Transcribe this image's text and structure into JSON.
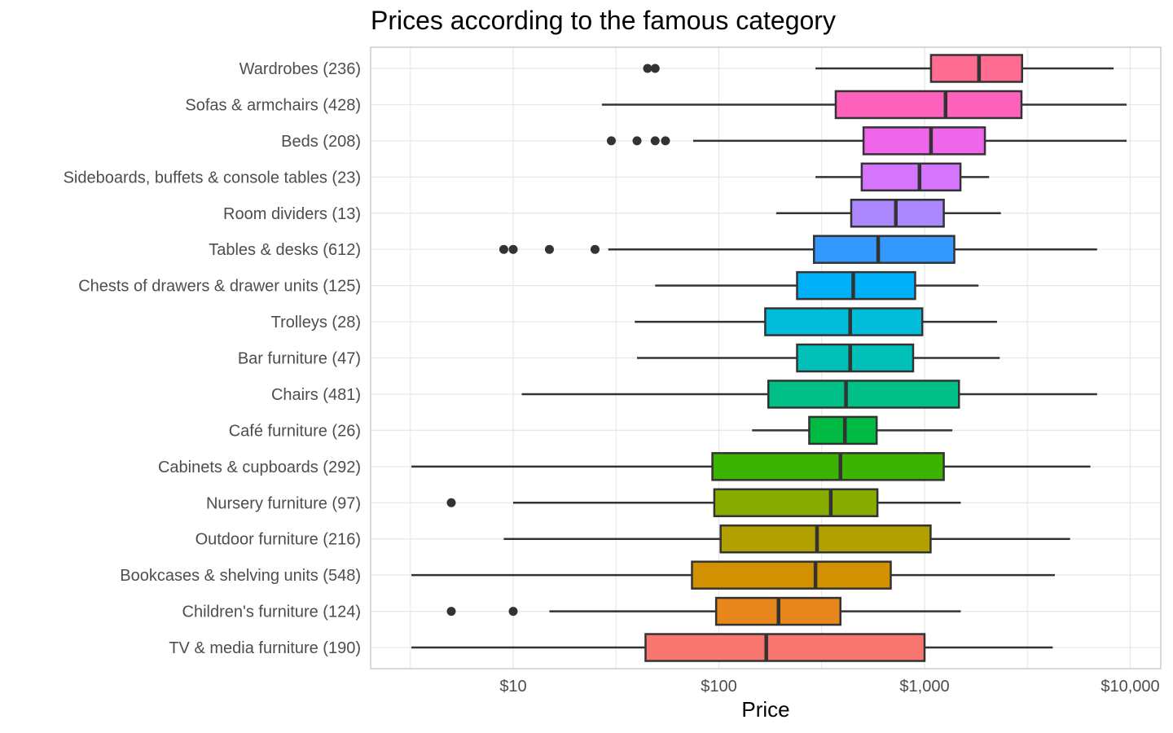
{
  "chart_data": {
    "type": "boxplot",
    "title": "Prices according to the famous category",
    "xlabel": "Price",
    "ylabel": "",
    "x_scale": "log10",
    "xlim": [
      3,
      11000
    ],
    "x_ticks": [
      10,
      100,
      1000,
      10000
    ],
    "x_tick_labels": [
      "$10",
      "$100",
      "$1,000",
      "$10,000"
    ],
    "grid": true,
    "legend": "none",
    "panel_border_color": "#b3b3b3",
    "gridline_color": "#e6e6e6",
    "box_outline_color": "#333333",
    "outlier_color": "#333333",
    "categories": [
      {
        "label": "Wardrobes (236)",
        "color": "#FF6C91",
        "whisker_low": 295,
        "q1": 1075,
        "median": 1840,
        "q3": 2980,
        "whisker_high": 8300,
        "outliers": [
          45,
          49
        ]
      },
      {
        "label": "Sofas & armchairs (428)",
        "color": "#FF62BC",
        "whisker_low": 27,
        "q1": 370,
        "median": 1265,
        "q3": 2960,
        "whisker_high": 9600,
        "outliers": []
      },
      {
        "label": "Beds (208)",
        "color": "#F066EA",
        "whisker_low": 75,
        "q1": 505,
        "median": 1075,
        "q3": 1965,
        "whisker_high": 9600,
        "outliers": [
          30,
          40,
          49,
          55
        ]
      },
      {
        "label": "Sideboards, buffets & console tables (23)",
        "color": "#D575FE",
        "whisker_low": 295,
        "q1": 495,
        "median": 945,
        "q3": 1495,
        "whisker_high": 2060,
        "outliers": []
      },
      {
        "label": "Room dividers (13)",
        "color": "#AC88FF",
        "whisker_low": 190,
        "q1": 440,
        "median": 725,
        "q3": 1240,
        "whisker_high": 2350,
        "outliers": []
      },
      {
        "label": "Tables & desks (612)",
        "color": "#3399FF",
        "whisker_low": 29,
        "q1": 290,
        "median": 595,
        "q3": 1395,
        "whisker_high": 6900,
        "outliers": [
          9,
          10,
          15,
          25
        ]
      },
      {
        "label": "Chests of drawers & drawer units (125)",
        "color": "#00B0F6",
        "whisker_low": 49,
        "q1": 240,
        "median": 450,
        "q3": 900,
        "whisker_high": 1830,
        "outliers": []
      },
      {
        "label": "Trolleys (28)",
        "color": "#00BCD8",
        "whisker_low": 39,
        "q1": 168,
        "median": 435,
        "q3": 975,
        "whisker_high": 2250,
        "outliers": []
      },
      {
        "label": "Bar furniture (47)",
        "color": "#00C0B7",
        "whisker_low": 40,
        "q1": 240,
        "median": 435,
        "q3": 880,
        "whisker_high": 2320,
        "outliers": []
      },
      {
        "label": "Chairs (481)",
        "color": "#00C087",
        "whisker_low": 11,
        "q1": 174,
        "median": 415,
        "q3": 1470,
        "whisker_high": 6900,
        "outliers": []
      },
      {
        "label": "Café furniture (26)",
        "color": "#00BA42",
        "whisker_low": 145,
        "q1": 275,
        "median": 410,
        "q3": 585,
        "whisker_high": 1365,
        "outliers": []
      },
      {
        "label": "Cabinets & cupboards (292)",
        "color": "#3BB300",
        "whisker_low": 3.2,
        "q1": 93,
        "median": 390,
        "q3": 1240,
        "whisker_high": 6400,
        "outliers": []
      },
      {
        "label": "Nursery furniture (97)",
        "color": "#88AC00",
        "whisker_low": 10,
        "q1": 95,
        "median": 350,
        "q3": 590,
        "whisker_high": 1500,
        "outliers": [
          5
        ]
      },
      {
        "label": "Outdoor furniture (216)",
        "color": "#B2A000",
        "whisker_low": 9,
        "q1": 102,
        "median": 300,
        "q3": 1070,
        "whisker_high": 5100,
        "outliers": []
      },
      {
        "label": "Bookcases & shelving units (548)",
        "color": "#D29100",
        "whisker_low": 3.2,
        "q1": 74,
        "median": 295,
        "q3": 685,
        "whisker_high": 4300,
        "outliers": []
      },
      {
        "label": "Children's furniture (124)",
        "color": "#E7861B",
        "whisker_low": 15,
        "q1": 97,
        "median": 195,
        "q3": 390,
        "whisker_high": 1500,
        "outliers": [
          5,
          10
        ]
      },
      {
        "label": "TV & media furniture (190)",
        "color": "#F8766D",
        "whisker_low": 3.2,
        "q1": 44,
        "median": 170,
        "q3": 1000,
        "whisker_high": 4200,
        "outliers": []
      }
    ]
  }
}
